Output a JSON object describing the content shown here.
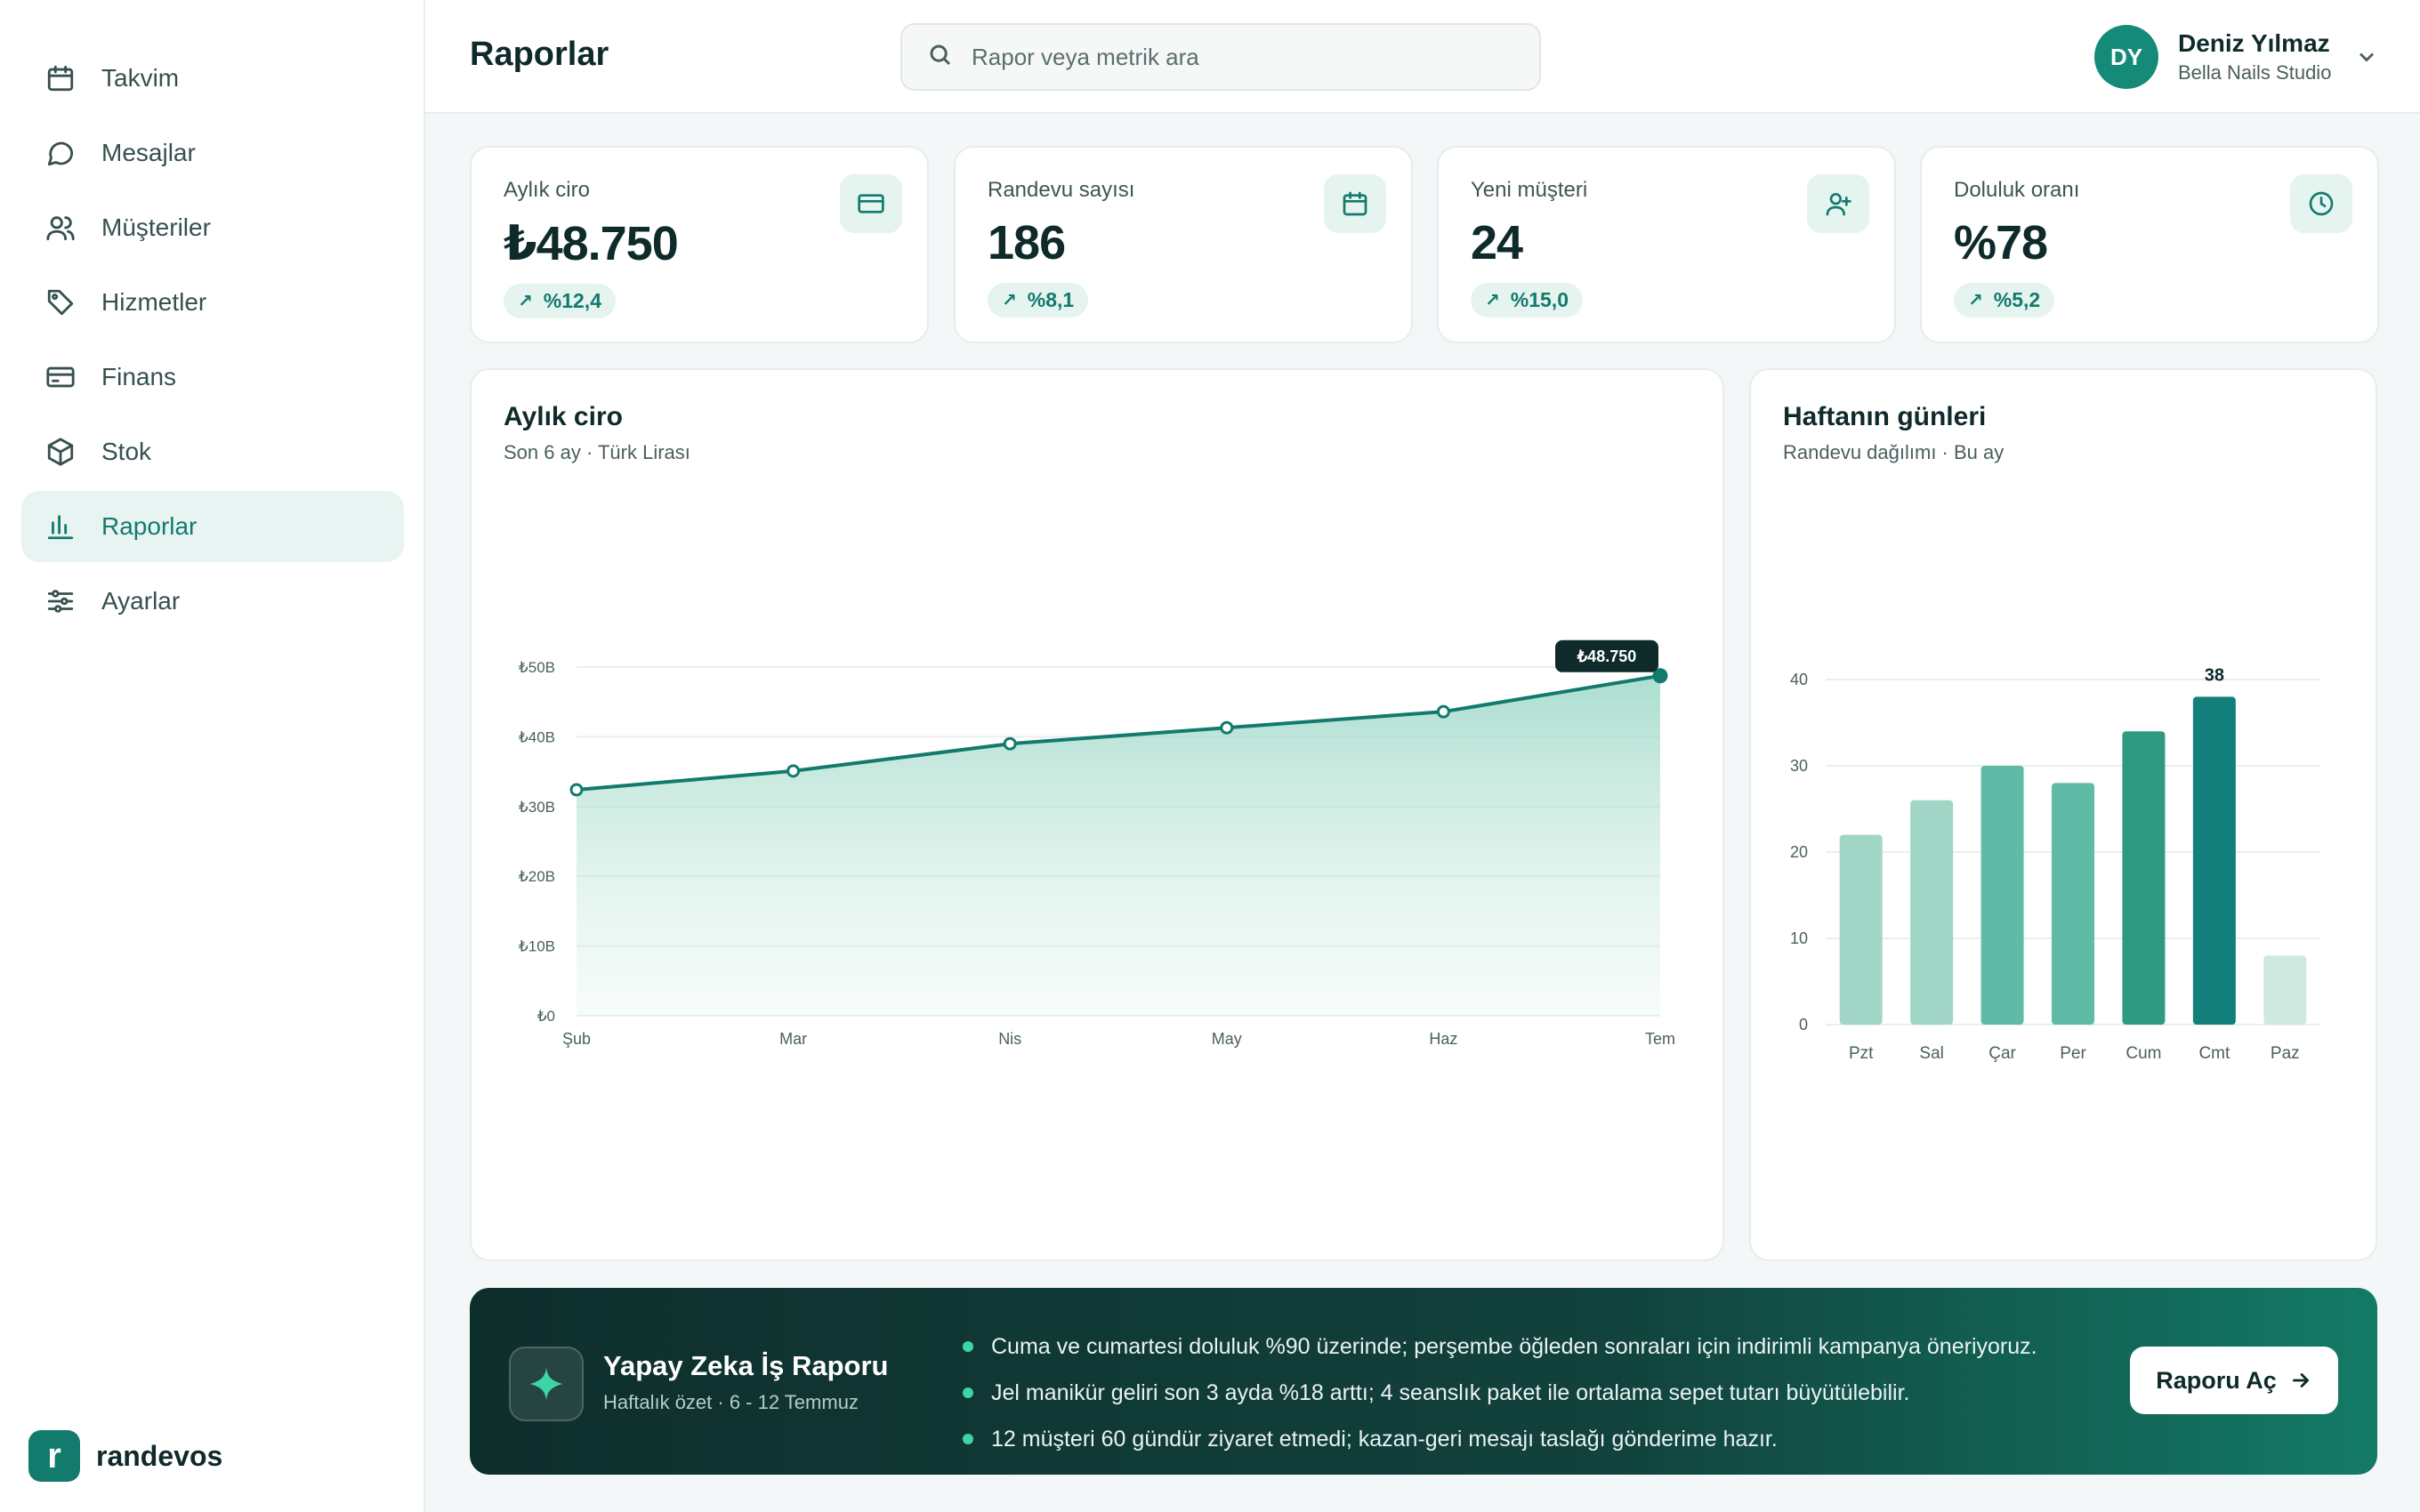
{
  "sidebar": {
    "items": [
      {
        "label": "Takvim",
        "icon": "calendar-icon"
      },
      {
        "label": "Mesajlar",
        "icon": "message-icon"
      },
      {
        "label": "Müşteriler",
        "icon": "users-icon"
      },
      {
        "label": "Hizmetler",
        "icon": "tag-icon"
      },
      {
        "label": "Finans",
        "icon": "credit-card-icon"
      },
      {
        "label": "Stok",
        "icon": "box-icon"
      },
      {
        "label": "Raporlar",
        "icon": "bar-chart-icon",
        "active": true
      },
      {
        "label": "Ayarlar",
        "icon": "sliders-icon"
      }
    ],
    "brand": {
      "logo_letter": "r",
      "name": "randevos"
    }
  },
  "header": {
    "title": "Raporlar",
    "search_placeholder": "Rapor veya metrik ara",
    "user": {
      "initials": "DY",
      "name": "Deniz Yılmaz",
      "org": "Bella Nails Studio"
    }
  },
  "kpis": [
    {
      "label": "Aylık ciro",
      "value": "₺48.750",
      "change": "%12,4",
      "icon": "credit-card-icon"
    },
    {
      "label": "Randevu sayısı",
      "value": "186",
      "change": "%8,1",
      "icon": "calendar-icon"
    },
    {
      "label": "Yeni müşteri",
      "value": "24",
      "change": "%15,0",
      "icon": "user-plus-icon"
    },
    {
      "label": "Doluluk oranı",
      "value": "%78",
      "change": "%5,2",
      "icon": "clock-icon"
    }
  ],
  "revenue_card": {
    "title": "Aylık ciro",
    "subtitle": "Son 6 ay · Türk Lirası"
  },
  "weekday_card": {
    "title": "Haftanın günleri",
    "subtitle": "Randevu dağılımı · Bu ay"
  },
  "chart_data": [
    {
      "type": "area",
      "title": "Aylık ciro",
      "subtitle": "Son 6 ay · Türk Lirası",
      "x": [
        "Şub",
        "Mar",
        "Nis",
        "May",
        "Haz",
        "Tem"
      ],
      "values": [
        32400,
        35100,
        39000,
        41300,
        43600,
        48750
      ],
      "yticks": [
        "₺0",
        "₺10B",
        "₺20B",
        "₺30B",
        "₺40B",
        "₺50B"
      ],
      "ylim": [
        0,
        50000
      ],
      "highlight_label": "₺48.750",
      "grid": true,
      "color": "#137a6e"
    },
    {
      "type": "bar",
      "title": "Haftanın günleri",
      "subtitle": "Randevu dağılımı · Bu ay",
      "categories": [
        "Pzt",
        "Sal",
        "Çar",
        "Per",
        "Cum",
        "Cmt",
        "Paz"
      ],
      "values": [
        22,
        26,
        30,
        28,
        34,
        38,
        8
      ],
      "colors": [
        "#a1d6c6",
        "#a1d6c6",
        "#5fbba5",
        "#5fbba5",
        "#2f9a80",
        "#137f7a",
        "#cfe9e1"
      ],
      "yticks": [
        "0",
        "10",
        "20",
        "30",
        "40"
      ],
      "ylim": [
        0,
        40
      ],
      "highlight_label": "38",
      "grid": true
    }
  ],
  "ai_report": {
    "title": "Yapay Zeka İş Raporu",
    "subtitle": "Haftalık özet · 6 - 12 Temmuz",
    "bullets": [
      "Cuma ve cumartesi doluluk %90 üzerinde; perşembe öğleden sonraları için indirimli kampanya öneriyoruz.",
      "Jel manikür geliri son 3 ayda %18 arttı; 4 seanslık paket ile ortalama sepet tutarı büyütülebilir.",
      "12 müşteri 60 gündür ziyaret etmedi; kazan-geri mesajı taslağı gönderime hazır."
    ],
    "button_label": "Raporu Aç"
  }
}
